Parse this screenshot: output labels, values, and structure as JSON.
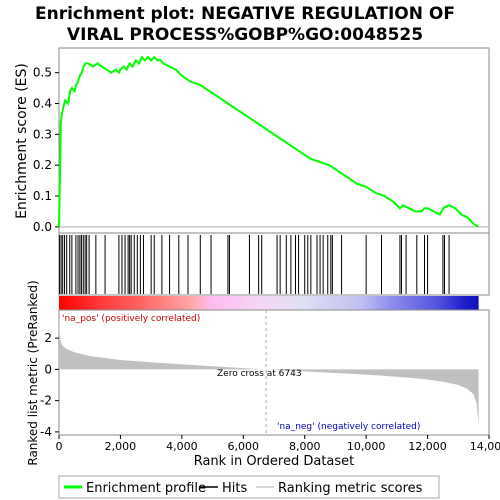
{
  "chart_data": [
    {
      "type": "line",
      "title": "Enrichment plot: NEGATIVE REGULATION OF\nVIRAL PROCESS%GOBP%GO:0048525",
      "ylabel": "Enrichment score (ES)",
      "ylim": [
        -0.02,
        0.58
      ],
      "xlim": [
        0,
        14000
      ],
      "yticks": [
        "0.0",
        "0.1",
        "0.2",
        "0.3",
        "0.4",
        "0.5"
      ],
      "series": [
        {
          "name": "Enrichment profile",
          "color": "#00ff00",
          "x": [
            0,
            30,
            60,
            100,
            150,
            200,
            300,
            360,
            420,
            500,
            560,
            620,
            680,
            740,
            800,
            860,
            950,
            1100,
            1250,
            1400,
            1550,
            1700,
            1850,
            1950,
            2000,
            2100,
            2200,
            2300,
            2400,
            2500,
            2600,
            2700,
            2800,
            2900,
            3000,
            3100,
            3200,
            3300,
            3400,
            3600,
            3800,
            4000,
            4300,
            4600,
            4900,
            5200,
            5500,
            5800,
            6100,
            6400,
            6700,
            7000,
            7300,
            7600,
            7900,
            8200,
            8500,
            8800,
            9100,
            9400,
            9700,
            10000,
            10300,
            10600,
            10900,
            11100,
            11200,
            11400,
            11600,
            11800,
            11900,
            12000,
            12200,
            12400,
            12500,
            12700,
            12900,
            13100,
            13300,
            13500,
            13660
          ],
          "y": [
            0.0,
            0.15,
            0.34,
            0.37,
            0.39,
            0.41,
            0.4,
            0.44,
            0.45,
            0.44,
            0.46,
            0.47,
            0.49,
            0.5,
            0.52,
            0.53,
            0.53,
            0.52,
            0.53,
            0.52,
            0.51,
            0.5,
            0.51,
            0.5,
            0.51,
            0.52,
            0.51,
            0.53,
            0.52,
            0.54,
            0.53,
            0.55,
            0.54,
            0.55,
            0.54,
            0.55,
            0.54,
            0.54,
            0.53,
            0.52,
            0.51,
            0.49,
            0.47,
            0.46,
            0.44,
            0.42,
            0.4,
            0.38,
            0.36,
            0.34,
            0.32,
            0.3,
            0.28,
            0.26,
            0.24,
            0.22,
            0.21,
            0.2,
            0.18,
            0.16,
            0.14,
            0.13,
            0.11,
            0.1,
            0.08,
            0.06,
            0.07,
            0.06,
            0.05,
            0.05,
            0.06,
            0.06,
            0.05,
            0.04,
            0.06,
            0.07,
            0.06,
            0.04,
            0.03,
            0.01,
            0.0
          ]
        }
      ]
    },
    {
      "type": "bar",
      "title": "",
      "xlabel": "Rank in Ordered Dataset",
      "ylabel": "Ranked list metric (PreRanked)",
      "xlim": [
        0,
        14000
      ],
      "ylim": [
        -4.2,
        3.8
      ],
      "xticks": [
        "0",
        "2,000",
        "4,000",
        "6,000",
        "8,000",
        "10,000",
        "12,000",
        "14,000"
      ],
      "yticks": [
        "2",
        "0",
        "-2",
        "-4"
      ],
      "hits": [
        20,
        70,
        120,
        180,
        250,
        350,
        420,
        550,
        620,
        680,
        730,
        790,
        850,
        900,
        980,
        1200,
        1500,
        1950,
        2050,
        2150,
        2250,
        2300,
        2350,
        2450,
        2550,
        2650,
        2750,
        3000,
        3100,
        3350,
        3600,
        3900,
        4200,
        4600,
        4950,
        5500,
        5550,
        6200,
        6500,
        6600,
        7100,
        7200,
        7400,
        7550,
        7700,
        7800,
        8000,
        8100,
        8200,
        8400,
        8500,
        8600,
        8750,
        8850,
        8900,
        9200,
        10000,
        10500,
        11100,
        11150,
        11300,
        11650,
        11900,
        12000,
        12500,
        12550,
        12700
      ],
      "metric_x": [
        0,
        20,
        60,
        120,
        250,
        500,
        1000,
        2000,
        3000,
        4000,
        5000,
        6000,
        6743,
        7500,
        8500,
        9500,
        10500,
        11500,
        12000,
        12500,
        13000,
        13300,
        13500,
        13600,
        13660
      ],
      "metric_y": [
        3.6,
        2.4,
        1.75,
        1.5,
        1.3,
        1.1,
        0.85,
        0.6,
        0.45,
        0.32,
        0.2,
        0.08,
        0.0,
        -0.08,
        -0.18,
        -0.28,
        -0.4,
        -0.55,
        -0.65,
        -0.78,
        -1.0,
        -1.25,
        -1.6,
        -2.2,
        -3.7
      ],
      "zero_cross": 6743,
      "annotations": [
        "'na_pos' (positively correlated)",
        "Zero cross at 6743",
        "'na_neg' (negatively correlated)"
      ]
    }
  ],
  "legend": {
    "items": [
      "Enrichment profile",
      "Hits",
      "Ranking metric scores"
    ],
    "colors": [
      "#00ff00",
      "#000000",
      "#cccccc"
    ]
  }
}
